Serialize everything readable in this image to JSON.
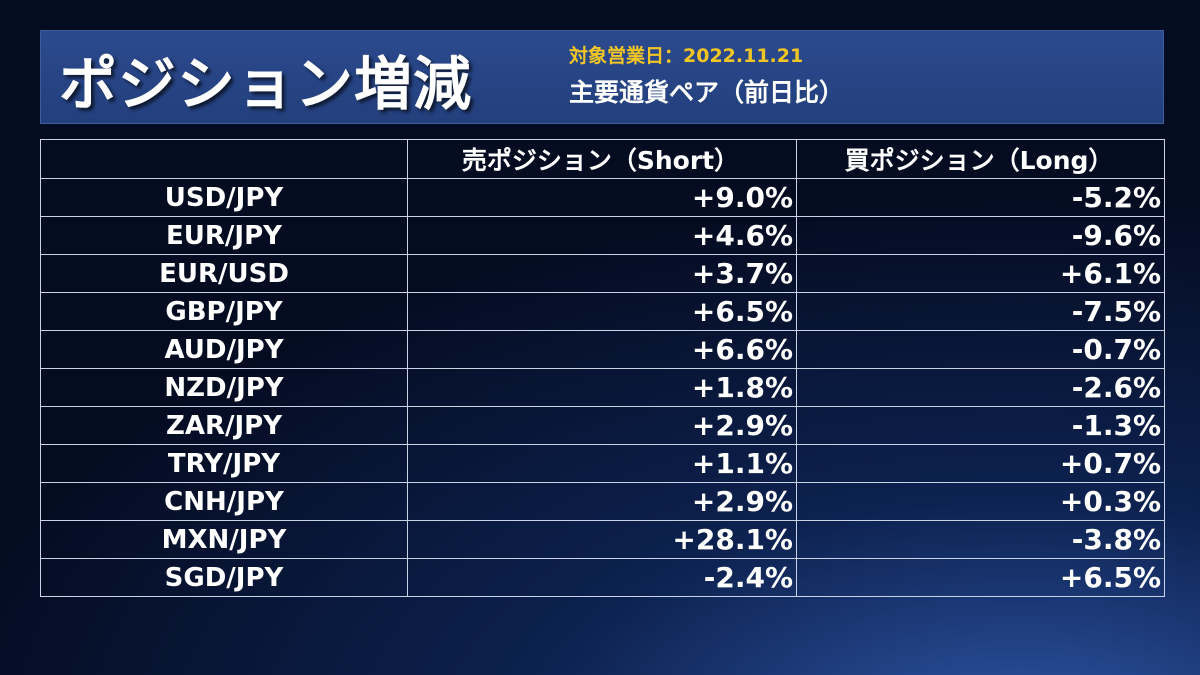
{
  "header": {
    "title": "ポジション増減",
    "date_line": "対象営業日：2022.11.21",
    "subtitle": "主要通貨ペア（前日比）"
  },
  "table": {
    "columns": [
      "",
      "売ポジション（Short）",
      "買ポジション（Long）"
    ],
    "rows": [
      {
        "pair": "USD/JPY",
        "short": "+9.0%",
        "long": "-5.2%"
      },
      {
        "pair": "EUR/JPY",
        "short": "+4.6%",
        "long": "-9.6%"
      },
      {
        "pair": "EUR/USD",
        "short": "+3.7%",
        "long": "+6.1%"
      },
      {
        "pair": "GBP/JPY",
        "short": "+6.5%",
        "long": "-7.5%"
      },
      {
        "pair": "AUD/JPY",
        "short": "+6.6%",
        "long": "-0.7%"
      },
      {
        "pair": "NZD/JPY",
        "short": "+1.8%",
        "long": "-2.6%"
      },
      {
        "pair": "ZAR/JPY",
        "short": "+2.9%",
        "long": "-1.3%"
      },
      {
        "pair": "TRY/JPY",
        "short": "+1.1%",
        "long": "+0.7%"
      },
      {
        "pair": "CNH/JPY",
        "short": "+2.9%",
        "long": "+0.3%"
      },
      {
        "pair": "MXN/JPY",
        "short": "+28.1%",
        "long": "-3.8%"
      },
      {
        "pair": "SGD/JPY",
        "short": "-2.4%",
        "long": "+6.5%"
      }
    ]
  },
  "colors": {
    "background": "#0d2250",
    "header_band": "#2b4a8e",
    "date_text": "#f3c623",
    "text": "#ffffff",
    "table_border": "#c9d3e6"
  }
}
